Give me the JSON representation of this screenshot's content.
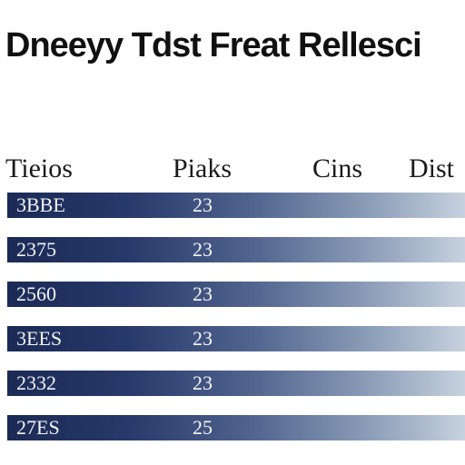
{
  "page": {
    "title": "Dneeyy Tdst Freat Rellesci"
  },
  "table": {
    "headers": [
      "Tieios",
      "Piaks",
      "Cins",
      "Dist"
    ],
    "rows": [
      {
        "name": "3BBE",
        "value": "23"
      },
      {
        "name": "2375",
        "value": "23"
      },
      {
        "name": "2560",
        "value": "23"
      },
      {
        "name": "3EES",
        "value": "23"
      },
      {
        "name": "2332",
        "value": "23"
      },
      {
        "name": "27ES",
        "value": "25"
      }
    ]
  },
  "colors": {
    "row_dark": "#1b2a55",
    "row_light": "#c7d2de",
    "text": "#111111"
  }
}
